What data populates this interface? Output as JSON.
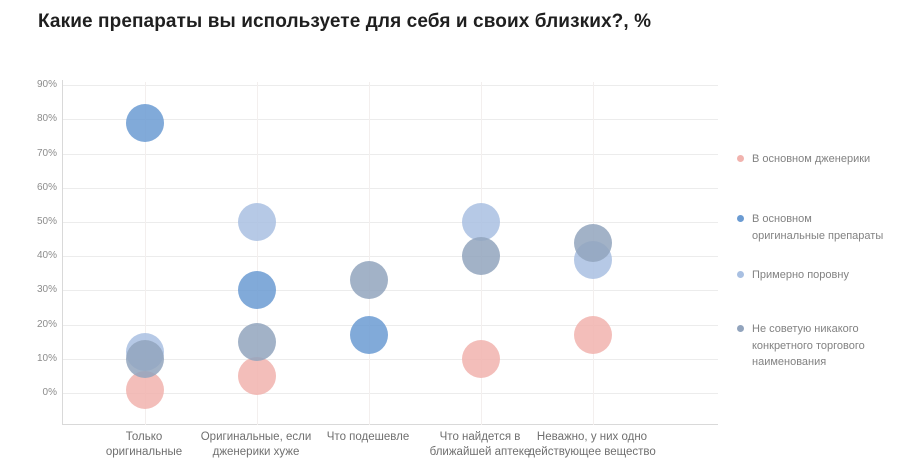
{
  "title": "Какие препараты вы используете для себя и своих близких?, %",
  "chart_data": {
    "type": "bubble",
    "title": "Какие препараты вы используете для себя и своих близких?, %",
    "unit": "%",
    "grid": true,
    "legend_position": "right",
    "x_categories": [
      "Только оригинальные",
      "Оригинальные, если дженерики хуже",
      "Что подешевле",
      "Что найдется в ближайшей аптеке",
      "Неважно, у них одно действующее вещество"
    ],
    "x_tick_display": [
      "Только\nоригинальные",
      "Оригинальные, если\nдженерики хуже",
      "Что подешевле",
      "Что найдется в\nближайшей аптеке",
      "Неважно, у них одно\nдействующее вещество"
    ],
    "y_axis": {
      "min": 0,
      "max": 90,
      "step": 10,
      "ticks": [
        "0%",
        "10%",
        "20%",
        "30%",
        "40%",
        "50%",
        "60%",
        "70%",
        "80%",
        "90%"
      ]
    },
    "series": [
      {
        "name": "В основном дженерики",
        "legend_display": "В основном дженерики",
        "color": "#f1b3ae",
        "values": [
          1,
          5,
          null,
          10,
          17
        ]
      },
      {
        "name": "В основном оригинальные препараты",
        "legend_display": "В основном\nоригинальные препараты",
        "color": "#6b9bd2",
        "values": [
          79,
          30,
          17,
          null,
          null
        ]
      },
      {
        "name": "Примерно поровну",
        "legend_display": "Примерно поровну",
        "color": "#a9c0e2",
        "values": [
          12,
          50,
          null,
          50,
          39
        ]
      },
      {
        "name": "Не советую никакого конкретного торгового наименования",
        "legend_display": "Не советую никакого\nконкретного торгового\nнаименования",
        "color": "#92a4bd",
        "values": [
          10,
          15,
          33,
          40,
          44
        ]
      }
    ]
  }
}
